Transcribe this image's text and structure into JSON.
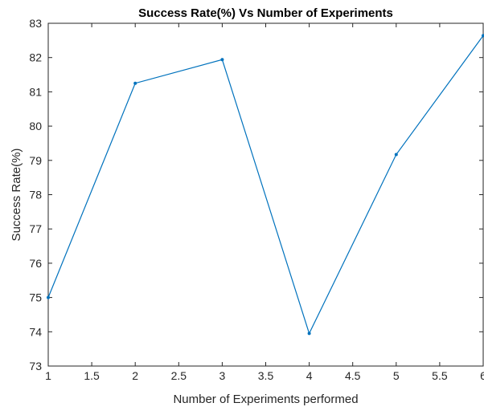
{
  "chart_data": {
    "type": "line",
    "title": "Success Rate(%) Vs Number of Experiments",
    "xlabel": "Number of Experiments performed",
    "ylabel": "Success Rate(%)",
    "xlim": [
      1,
      6
    ],
    "ylim": [
      73,
      83
    ],
    "xticks": [
      "1",
      "1.5",
      "2",
      "2.5",
      "3",
      "3.5",
      "4",
      "4.5",
      "5",
      "5.5",
      "6"
    ],
    "yticks": [
      "73",
      "74",
      "75",
      "76",
      "77",
      "78",
      "79",
      "80",
      "81",
      "82",
      "83"
    ],
    "grid": false,
    "series": [
      {
        "x": [
          1,
          2,
          3,
          4,
          5,
          6
        ],
        "values": [
          75.0,
          81.25,
          81.94,
          73.95,
          79.17,
          82.64
        ],
        "color": "#0072BD",
        "marker": "dot"
      }
    ]
  }
}
